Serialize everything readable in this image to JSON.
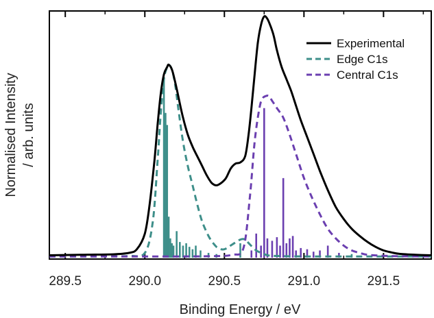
{
  "chart_data": {
    "type": "line",
    "xlabel": "Binding Energy / eV",
    "ylabel_line1": "Normalised Intensity",
    "ylabel_line2": "/ arb. units",
    "xlim": [
      289.4,
      291.8
    ],
    "ylim": [
      0,
      1.0
    ],
    "x_ticks": [
      289.5,
      290.0,
      290.5,
      291.0,
      291.5
    ],
    "x_tick_labels": [
      "289.5",
      "290.0",
      "290.5",
      "291.0",
      "291.5"
    ],
    "y_ticks_shown": false,
    "legend_position": "top-right",
    "series": [
      {
        "name": "Experimental",
        "style": "solid",
        "color": "#000000",
        "x": [
          289.4,
          289.6,
          289.8,
          289.9,
          289.95,
          290.0,
          290.03,
          290.06,
          290.08,
          290.1,
          290.12,
          290.14,
          290.15,
          290.17,
          290.19,
          290.21,
          290.24,
          290.27,
          290.3,
          290.33,
          290.36,
          290.39,
          290.42,
          290.45,
          290.48,
          290.51,
          290.54,
          290.57,
          290.6,
          290.63,
          290.65,
          290.67,
          290.69,
          290.71,
          290.73,
          290.75,
          290.77,
          290.79,
          290.81,
          290.83,
          290.86,
          290.89,
          290.92,
          290.95,
          290.98,
          291.02,
          291.06,
          291.1,
          291.15,
          291.2,
          291.25,
          291.3,
          291.35,
          291.4,
          291.45,
          291.5,
          291.55,
          291.6,
          291.7,
          291.8
        ],
        "y": [
          0.01,
          0.012,
          0.014,
          0.02,
          0.035,
          0.1,
          0.22,
          0.4,
          0.55,
          0.68,
          0.76,
          0.79,
          0.8,
          0.78,
          0.73,
          0.67,
          0.58,
          0.51,
          0.46,
          0.42,
          0.38,
          0.34,
          0.31,
          0.3,
          0.31,
          0.33,
          0.37,
          0.39,
          0.395,
          0.42,
          0.5,
          0.62,
          0.76,
          0.89,
          0.965,
          1.0,
          0.99,
          0.96,
          0.92,
          0.86,
          0.79,
          0.74,
          0.69,
          0.63,
          0.57,
          0.5,
          0.43,
          0.36,
          0.28,
          0.21,
          0.16,
          0.12,
          0.09,
          0.065,
          0.045,
          0.03,
          0.022,
          0.016,
          0.012,
          0.01
        ]
      },
      {
        "name": "Edge C1s",
        "style": "dashed",
        "color": "#3e8f8a",
        "x": [
          289.4,
          289.7,
          289.9,
          290.0,
          290.05,
          290.08,
          290.1,
          290.12,
          290.14,
          290.15,
          290.17,
          290.19,
          290.21,
          290.24,
          290.27,
          290.3,
          290.33,
          290.36,
          290.4,
          290.43,
          290.46,
          290.5,
          290.55,
          290.6,
          290.63,
          290.66,
          290.7,
          290.75,
          290.8,
          291.0,
          291.3,
          291.8
        ],
        "y": [
          0.005,
          0.005,
          0.007,
          0.02,
          0.15,
          0.4,
          0.6,
          0.74,
          0.79,
          0.8,
          0.78,
          0.72,
          0.62,
          0.48,
          0.38,
          0.3,
          0.22,
          0.15,
          0.09,
          0.06,
          0.04,
          0.035,
          0.055,
          0.075,
          0.075,
          0.055,
          0.03,
          0.015,
          0.008,
          0.005,
          0.005,
          0.005
        ]
      },
      {
        "name": "Central C1s",
        "style": "dashed",
        "color": "#6b3fb0",
        "x": [
          289.4,
          290.0,
          290.4,
          290.55,
          290.62,
          290.66,
          290.69,
          290.72,
          290.74,
          290.76,
          290.78,
          290.8,
          290.83,
          290.87,
          290.91,
          290.95,
          291.0,
          291.05,
          291.1,
          291.15,
          291.2,
          291.25,
          291.3,
          291.35,
          291.4,
          291.5,
          291.6,
          291.8
        ],
        "y": [
          0.005,
          0.005,
          0.006,
          0.012,
          0.04,
          0.25,
          0.48,
          0.62,
          0.66,
          0.67,
          0.67,
          0.65,
          0.62,
          0.58,
          0.51,
          0.43,
          0.33,
          0.25,
          0.18,
          0.12,
          0.08,
          0.05,
          0.03,
          0.02,
          0.012,
          0.008,
          0.006,
          0.005
        ]
      }
    ],
    "sticks": [
      {
        "color": "#3e8f8a",
        "x": [
          290.12,
          290.13,
          290.14,
          290.15,
          290.16,
          290.17,
          290.18,
          290.2,
          290.22,
          290.24,
          290.26,
          290.28,
          290.3,
          290.32,
          290.35,
          290.4,
          290.45,
          290.6,
          291.3
        ],
        "y": [
          0.75,
          0.6,
          0.55,
          0.17,
          0.08,
          0.06,
          0.05,
          0.11,
          0.065,
          0.05,
          0.06,
          0.045,
          0.035,
          0.05,
          0.03,
          0.02,
          0.015,
          0.06,
          0.015
        ]
      },
      {
        "color": "#6b3fb0",
        "x": [
          290.67,
          290.7,
          290.73,
          290.75,
          290.77,
          290.8,
          290.83,
          290.85,
          290.87,
          290.89,
          290.91,
          290.93,
          290.95,
          290.98,
          291.02,
          291.06,
          291.1,
          291.15,
          291.22
        ],
        "y": [
          0.03,
          0.1,
          0.05,
          0.62,
          0.08,
          0.07,
          0.085,
          0.05,
          0.33,
          0.06,
          0.08,
          0.09,
          0.03,
          0.04,
          0.035,
          0.025,
          0.03,
          0.05,
          0.02
        ]
      }
    ]
  }
}
